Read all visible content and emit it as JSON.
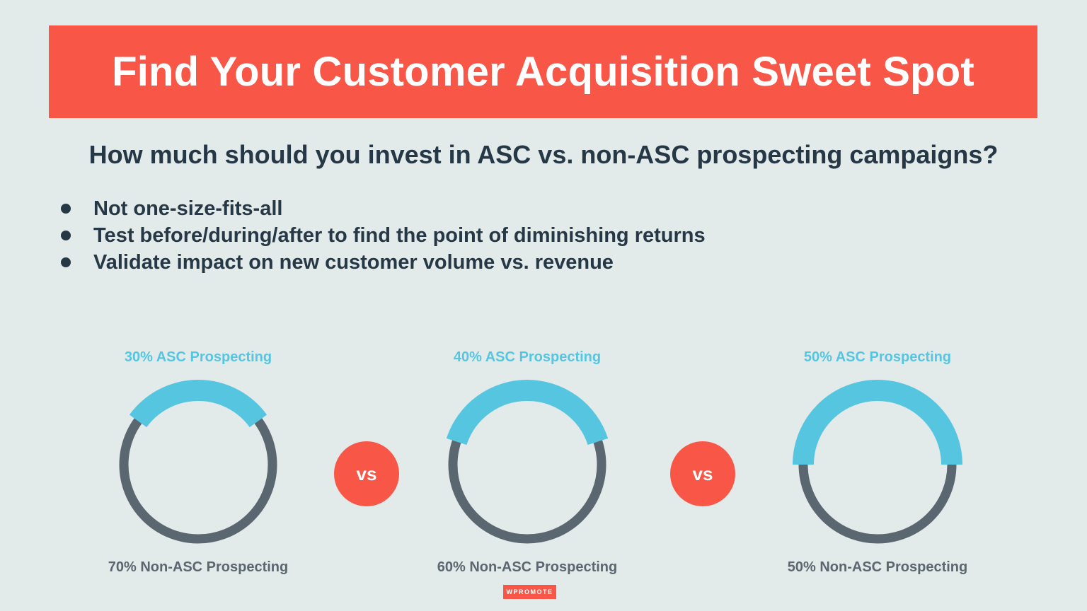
{
  "header": {
    "title": "Find Your Customer Acquisition Sweet Spot"
  },
  "subtitle": "How much should you invest in ASC vs. non-ASC prospecting campaigns?",
  "bullets": [
    "Not one-size-fits-all",
    "Test before/during/after to find the point of diminishing returns",
    "Validate impact on new customer volume vs. revenue"
  ],
  "colors": {
    "accent": "#f85748",
    "asc": "#56c6e0",
    "non_asc": "#5a6670",
    "text_dark": "#263746",
    "background": "#e3eaea"
  },
  "vs_label": "vs",
  "logo_text": "WPROMOTE",
  "chart_data": [
    {
      "type": "pie",
      "style": "ring",
      "slices": [
        {
          "label": "30% ASC Prospecting",
          "value": 30
        },
        {
          "label": "70% Non-ASC Prospecting",
          "value": 70
        }
      ]
    },
    {
      "type": "pie",
      "style": "ring",
      "slices": [
        {
          "label": "40% ASC Prospecting",
          "value": 40
        },
        {
          "label": "60% Non-ASC Prospecting",
          "value": 60
        }
      ]
    },
    {
      "type": "pie",
      "style": "ring",
      "slices": [
        {
          "label": "50% ASC Prospecting",
          "value": 50
        },
        {
          "label": "50% Non-ASC Prospecting",
          "value": 50
        }
      ]
    }
  ]
}
